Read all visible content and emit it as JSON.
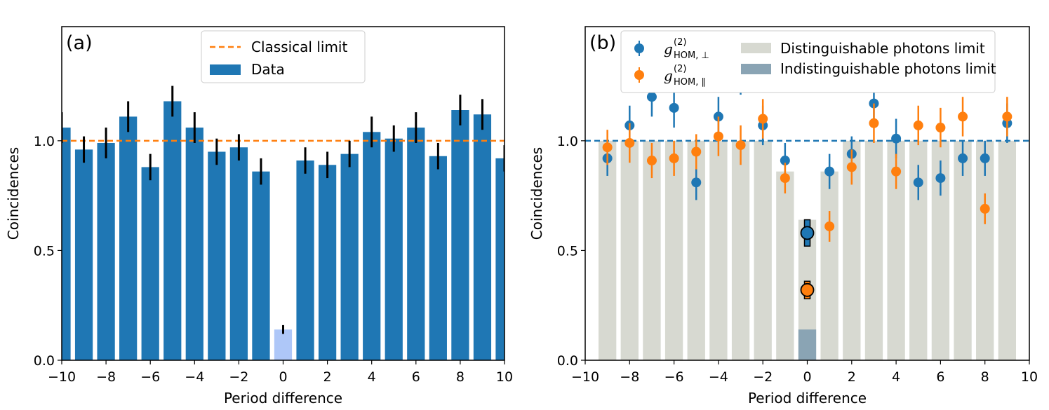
{
  "colors": {
    "blue": "#1f77b4",
    "orange": "#ff7f0e",
    "zero_bar": "#aec7f8",
    "gray": "#d7d9d1",
    "indist": "#8aa4b4",
    "error": "#000000"
  },
  "chart_data": [
    {
      "type": "bar",
      "panel": "(a)",
      "title": "",
      "xlabel": "Period difference",
      "ylabel": "Coincidences",
      "xlim": [
        -10,
        10
      ],
      "ylim": [
        0,
        1.52
      ],
      "xticks": [
        "−10",
        "−8",
        "−6",
        "−4",
        "−2",
        "0",
        "2",
        "4",
        "6",
        "8",
        "10"
      ],
      "yticks": [
        "0.0",
        "0.5",
        "1.0"
      ],
      "x": [
        -10,
        -9,
        -8,
        -7,
        -6,
        -5,
        -4,
        -3,
        -2,
        -1,
        0,
        1,
        2,
        3,
        4,
        5,
        6,
        7,
        8,
        9,
        10
      ],
      "values": [
        1.06,
        0.96,
        0.99,
        1.11,
        0.88,
        1.18,
        1.06,
        0.95,
        0.97,
        0.86,
        0.14,
        0.91,
        0.89,
        0.94,
        1.04,
        1.01,
        1.06,
        0.93,
        1.14,
        1.12,
        0.92
      ],
      "errors": [
        0.07,
        0.06,
        0.07,
        0.07,
        0.06,
        0.07,
        0.07,
        0.06,
        0.06,
        0.06,
        0.02,
        0.06,
        0.06,
        0.06,
        0.07,
        0.06,
        0.07,
        0.06,
        0.07,
        0.07,
        0.06
      ],
      "classical_limit": 1.0,
      "legend": {
        "position": "top-center",
        "items": [
          "Classical limit",
          "Data"
        ]
      }
    },
    {
      "type": "scatter",
      "panel": "(b)",
      "title": "",
      "xlabel": "Period difference",
      "ylabel": "Coincidences",
      "xlim": [
        -10,
        10
      ],
      "ylim": [
        0,
        1.52
      ],
      "xticks": [
        "−10",
        "−8",
        "−6",
        "−4",
        "−2",
        "0",
        "2",
        "4",
        "6",
        "8",
        "10"
      ],
      "yticks": [
        "0.0",
        "0.5",
        "1.0"
      ],
      "limit_line": 1.0,
      "distinguishable_limit": {
        "x": [
          -9,
          -8,
          -7,
          -6,
          -5,
          -4,
          -3,
          -2,
          -1,
          0,
          1,
          2,
          3,
          4,
          5,
          6,
          7,
          8,
          9
        ],
        "values": [
          1.0,
          1.0,
          1.0,
          1.0,
          1.0,
          1.0,
          1.0,
          1.0,
          0.86,
          0.64,
          0.86,
          1.0,
          1.0,
          1.0,
          1.0,
          1.0,
          1.0,
          1.0,
          1.0
        ]
      },
      "indistinguishable_limit": {
        "x": [
          0
        ],
        "values": [
          0.14
        ]
      },
      "series": [
        {
          "name": "perpendicular",
          "x": [
            -9,
            -8,
            -7,
            -6,
            -5,
            -4,
            -3,
            -2,
            -1,
            0,
            1,
            2,
            3,
            4,
            5,
            6,
            7,
            8,
            9
          ],
          "values": [
            0.92,
            1.07,
            1.2,
            1.15,
            0.81,
            1.11,
            1.3,
            1.07,
            0.91,
            0.58,
            0.86,
            0.94,
            1.17,
            1.01,
            0.81,
            0.83,
            0.92,
            0.92,
            1.08
          ],
          "errors": [
            0.08,
            0.09,
            0.09,
            0.09,
            0.08,
            0.09,
            0.09,
            0.09,
            0.08,
            0.06,
            0.08,
            0.08,
            0.09,
            0.09,
            0.08,
            0.08,
            0.08,
            0.08,
            0.09
          ]
        },
        {
          "name": "parallel",
          "x": [
            -9,
            -8,
            -7,
            -6,
            -5,
            -4,
            -3,
            -2,
            -1,
            0,
            1,
            2,
            3,
            4,
            5,
            6,
            7,
            8,
            9
          ],
          "values": [
            0.97,
            0.99,
            0.91,
            0.92,
            0.95,
            1.02,
            0.98,
            1.1,
            0.83,
            0.32,
            0.61,
            0.88,
            1.08,
            0.86,
            1.07,
            1.06,
            1.11,
            0.69,
            1.11
          ],
          "errors": [
            0.08,
            0.09,
            0.08,
            0.08,
            0.08,
            0.09,
            0.09,
            0.09,
            0.07,
            0.04,
            0.07,
            0.08,
            0.09,
            0.08,
            0.09,
            0.09,
            0.09,
            0.07,
            0.09
          ]
        }
      ],
      "legend": {
        "position": "top-center",
        "items": [
          {
            "symbol": "g",
            "sup": "(2)",
            "sub": "HOM, ⊥"
          },
          {
            "symbol": "g",
            "sup": "(2)",
            "sub": "HOM, ∥"
          },
          {
            "label": "Distinguishable photons limit"
          },
          {
            "label": "Indistinguishable photons limit"
          }
        ]
      }
    }
  ]
}
